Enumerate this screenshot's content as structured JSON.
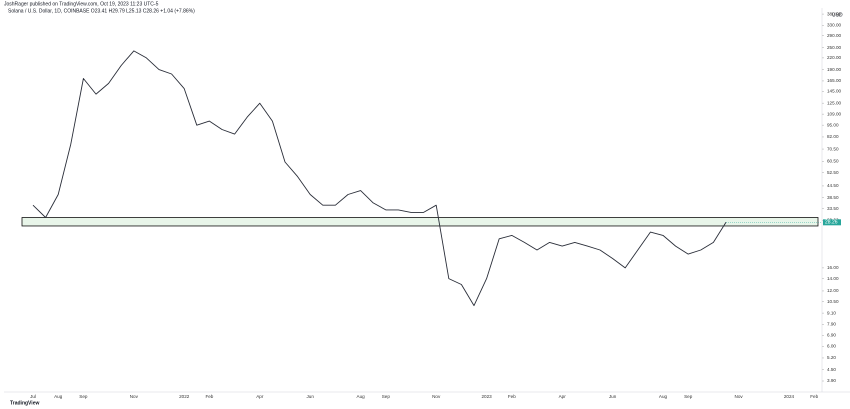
{
  "header": "JoshRager published on TradingView.com, Oct 19, 2023 11:23 UTC-5",
  "logo": "TradingView",
  "chart_data": {
    "type": "line",
    "title": "Solana / U.S. Dollar, 1D, COINBASE  O23.41  H29.79  L25.13  C28.26  +1.04 (+7.86%)",
    "currency": "USD",
    "log_scale": true,
    "categories": [
      "Jul",
      null,
      "Aug",
      null,
      "Sep",
      null,
      null,
      null,
      "Nov",
      null,
      null,
      null,
      "2022",
      null,
      "Feb",
      null,
      null,
      null,
      "Apr",
      null,
      null,
      null,
      "Jun",
      null,
      null,
      null,
      "Aug",
      null,
      "Sep",
      null,
      null,
      null,
      "Nov",
      null,
      null,
      null,
      "2023",
      null,
      "Feb",
      null,
      null,
      null,
      "Apr",
      null,
      null,
      null,
      "Jun",
      null,
      null,
      null,
      "Aug",
      null,
      "Sep",
      null,
      null,
      null,
      "Nov",
      null,
      null,
      null,
      "2024",
      null,
      "Feb",
      null
    ],
    "series": [
      {
        "name": "SOLUSD",
        "color": "#2a2e39",
        "values": [
          35,
          30,
          40,
          75,
          170,
          140,
          160,
          200,
          240,
          220,
          190,
          180,
          150,
          95,
          100,
          90,
          85,
          105,
          125,
          100,
          60,
          50,
          40,
          35,
          35,
          40,
          42,
          36,
          33,
          33,
          32,
          32,
          35,
          14,
          13,
          10,
          14,
          23,
          24,
          22,
          20,
          22,
          21,
          22,
          21,
          20,
          18,
          16,
          20,
          25,
          24,
          21,
          19,
          20,
          22,
          28.26,
          null,
          null,
          null,
          null,
          null,
          null,
          null,
          null
        ]
      }
    ],
    "ylim": [
      3.4,
      410
    ],
    "yticks": [
      {
        "value": 380,
        "label": "380.00"
      },
      {
        "value": 330,
        "label": "330.00"
      },
      {
        "value": 290,
        "label": "290.00"
      },
      {
        "value": 250,
        "label": "250.00"
      },
      {
        "value": 220,
        "label": "220.00"
      },
      {
        "value": 190,
        "label": "190.00"
      },
      {
        "value": 165,
        "label": "165.00"
      },
      {
        "value": 145,
        "label": "145.00"
      },
      {
        "value": 125,
        "label": "125.00"
      },
      {
        "value": 109,
        "label": "109.00"
      },
      {
        "value": 95,
        "label": "95.00"
      },
      {
        "value": 82,
        "label": "82.00"
      },
      {
        "value": 70.5,
        "label": "70.50"
      },
      {
        "value": 60.5,
        "label": "60.50"
      },
      {
        "value": 52.5,
        "label": "52.50"
      },
      {
        "value": 44.5,
        "label": "44.50"
      },
      {
        "value": 38.5,
        "label": "38.50"
      },
      {
        "value": 33.5,
        "label": "33.50"
      },
      {
        "value": 29,
        "label": "29.00"
      },
      {
        "value": 16,
        "label": "16.00"
      },
      {
        "value": 14,
        "label": "14.00"
      },
      {
        "value": 12,
        "label": "12.00"
      },
      {
        "value": 10.5,
        "label": "10.50"
      },
      {
        "value": 9.1,
        "label": "9.10"
      },
      {
        "value": 7.9,
        "label": "7.90"
      },
      {
        "value": 6.9,
        "label": "6.90"
      },
      {
        "value": 6,
        "label": "6.00"
      },
      {
        "value": 5.2,
        "label": "5.20"
      },
      {
        "value": 4.5,
        "label": "4.50"
      },
      {
        "value": 3.9,
        "label": "3.90"
      }
    ],
    "zone": {
      "low": 27,
      "high": 30,
      "color": "#e8f5e9"
    },
    "grid": false
  }
}
